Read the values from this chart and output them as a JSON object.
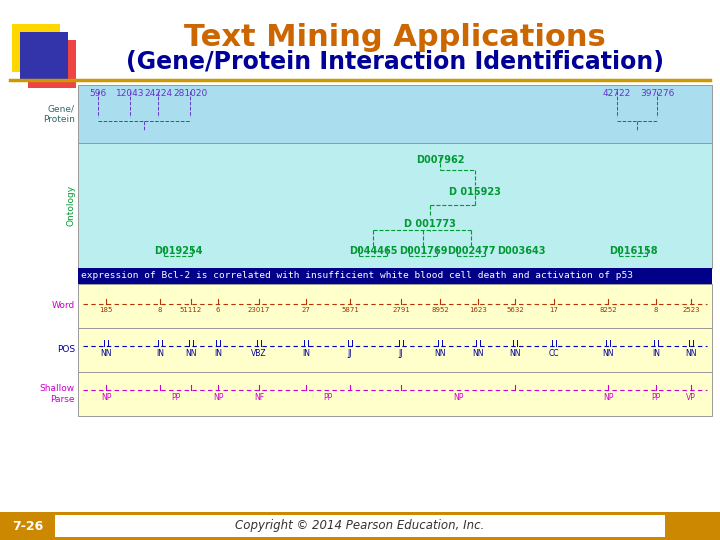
{
  "title_line1": "Text Mining Applications",
  "title_line2": "(Gene/Protein Interaction Identification)",
  "title_color1": "#CC6600",
  "title_color2": "#000099",
  "bg_color": "#FFFFFF",
  "slide_number": "7-26",
  "copyright": "Copyright © 2014 Pearson Education, Inc.",
  "footer_bg": "#CC8800",
  "sentence": "expression of Bcl-2 is correlated with insufficient white blood cell death and activation of p53",
  "word_labels": [
    "185",
    "8",
    "51112",
    "6",
    "23017",
    "27",
    "5871",
    "2791",
    "8952",
    "1623",
    "5632",
    "17",
    "8252",
    "8",
    "2523"
  ],
  "pos_labels": [
    "NN",
    "IN",
    "NN",
    "IN",
    "VBZ",
    "IN",
    "JJ",
    "JJ",
    "NN",
    "NN",
    "NN",
    "CC",
    "NN",
    "IN",
    "NN"
  ],
  "gene_color": "#6633CC",
  "ontology_color": "#009933",
  "word_num_color": "#993300",
  "pos_color": "#000099",
  "shallow_color": "#CC00CC",
  "left_gene_color": "#336666",
  "left_ont_color": "#009933",
  "left_word_color": "#CC00CC",
  "left_pos_color": "#000099",
  "left_sp_color": "#CC00CC",
  "cyan_gene_bg": "#AADDEE",
  "cyan_ont_bg": "#BBEEEE",
  "yellow_bg": "#FFFFCC",
  "sentence_bg": "#000088",
  "gold_line": "#CC9900"
}
